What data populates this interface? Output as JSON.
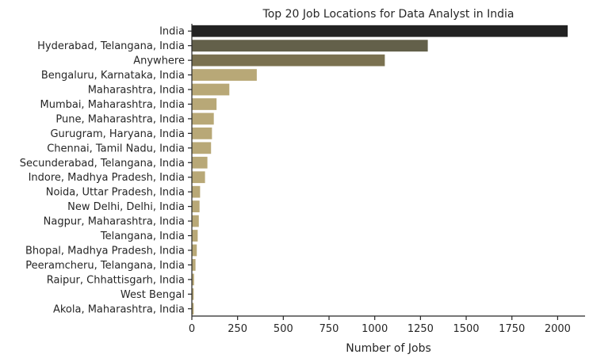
{
  "chart_data": {
    "type": "bar",
    "orientation": "horizontal",
    "title": "Top 20 Job Locations for Data Analyst in India",
    "xlabel": "Number of Jobs",
    "ylabel": "",
    "xlim": [
      0,
      2150
    ],
    "xticks": [
      "0",
      "250",
      "500",
      "750",
      "1000",
      "1250",
      "1500",
      "1750",
      "2000"
    ],
    "grid": false,
    "colors": {
      "high": "#222222",
      "mid_dark": "#63604a",
      "mid": "#7a7150",
      "low": "#b8a877"
    },
    "categories": [
      "India",
      "Hyderabad, Telangana, India",
      "Anywhere",
      "Bengaluru, Karnataka, India",
      "Maharashtra, India",
      "Mumbai, Maharashtra, India",
      "Pune, Maharashtra, India",
      "Gurugram, Haryana, India",
      "Chennai, Tamil Nadu, India",
      "Secunderabad, Telangana, India",
      "Indore, Madhya Pradesh, India",
      "Noida, Uttar Pradesh, India",
      "New Delhi, Delhi, India",
      "Nagpur, Maharashtra, India",
      "Telangana, India",
      "Bhopal, Madhya Pradesh, India",
      "Peeramcheru, Telangana, India",
      "Raipur, Chhattisgarh, India",
      "West Bengal",
      "Akola, Maharashtra, India"
    ],
    "values": [
      2055,
      1290,
      1055,
      355,
      205,
      135,
      120,
      110,
      105,
      85,
      72,
      45,
      42,
      38,
      32,
      27,
      20,
      12,
      10,
      10
    ]
  }
}
